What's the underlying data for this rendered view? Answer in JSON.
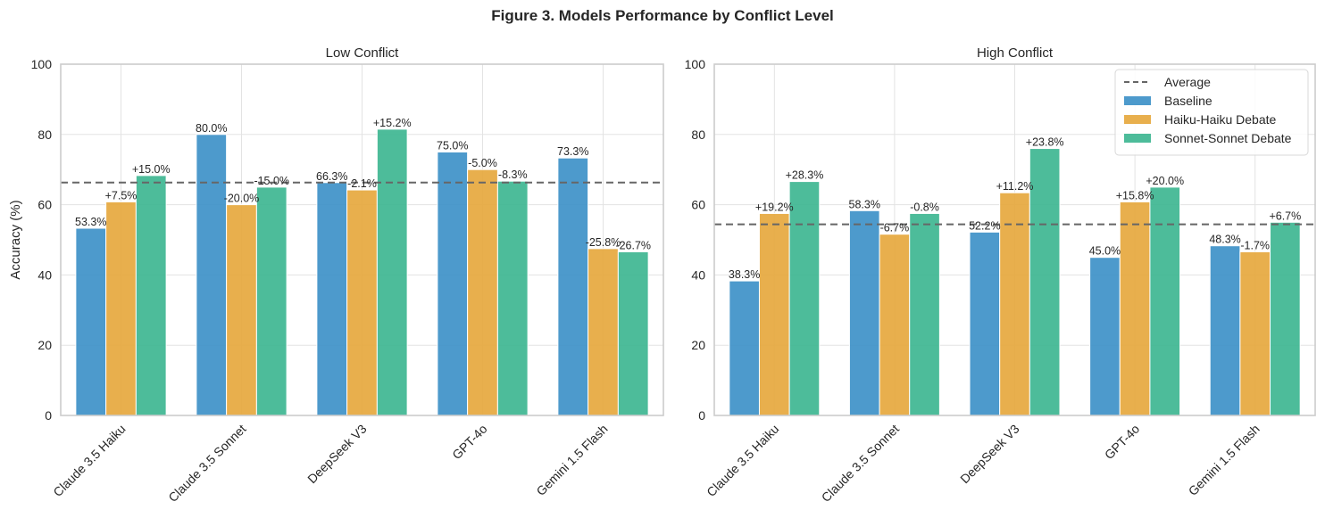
{
  "figure_title": "Figure 3. Models Performance by Conflict Level",
  "colors": {
    "Baseline": "#3a8fc7",
    "Haiku-Haiku Debate": "#e5a63a",
    "Sonnet-Sonnet Debate": "#3ab58f",
    "average": "#666666",
    "grid": "#e3e3e3",
    "spine": "#cccccc"
  },
  "chart_data": [
    {
      "type": "bar",
      "title": "Low Conflict",
      "xlabel": "",
      "ylabel": "Accuracy (%)",
      "ylim": [
        0,
        100
      ],
      "yticks": [
        "0",
        "20",
        "40",
        "60",
        "80",
        "100"
      ],
      "grid": true,
      "categories": [
        "Claude 3.5 Haiku",
        "Claude 3.5 Sonnet",
        "DeepSeek V3",
        "GPT-4o",
        "Gemini 1.5 Flash"
      ],
      "series": [
        {
          "name": "Baseline",
          "values": [
            53.3,
            80.0,
            66.3,
            75.0,
            73.3
          ],
          "labels": [
            "53.3%",
            "80.0%",
            "66.3%",
            "75.0%",
            "73.3%"
          ]
        },
        {
          "name": "Haiku-Haiku Debate",
          "values": [
            60.8,
            60.0,
            64.2,
            70.0,
            47.5
          ],
          "labels": [
            "+7.5%",
            "-20.0%",
            "-2.1%",
            "-5.0%",
            "-25.8%"
          ]
        },
        {
          "name": "Sonnet-Sonnet Debate",
          "values": [
            68.3,
            65.0,
            81.5,
            66.7,
            46.6
          ],
          "labels": [
            "+15.0%",
            "-15.0%",
            "+15.2%",
            "-8.3%",
            "-26.7%"
          ]
        }
      ],
      "average": 66.3,
      "legend": null
    },
    {
      "type": "bar",
      "title": "High Conflict",
      "xlabel": "",
      "ylabel": "",
      "ylim": [
        0,
        100
      ],
      "yticks": [
        "0",
        "20",
        "40",
        "60",
        "80",
        "100"
      ],
      "grid": true,
      "categories": [
        "Claude 3.5 Haiku",
        "Claude 3.5 Sonnet",
        "DeepSeek V3",
        "GPT-4o",
        "Gemini 1.5 Flash"
      ],
      "series": [
        {
          "name": "Baseline",
          "values": [
            38.3,
            58.3,
            52.2,
            45.0,
            48.3
          ],
          "labels": [
            "38.3%",
            "58.3%",
            "52.2%",
            "45.0%",
            "48.3%"
          ]
        },
        {
          "name": "Haiku-Haiku Debate",
          "values": [
            57.5,
            51.6,
            63.4,
            60.8,
            46.6
          ],
          "labels": [
            "+19.2%",
            "-6.7%",
            "+11.2%",
            "+15.8%",
            "-1.7%"
          ]
        },
        {
          "name": "Sonnet-Sonnet Debate",
          "values": [
            66.6,
            57.5,
            76.0,
            65.0,
            55.0
          ],
          "labels": [
            "+28.3%",
            "-0.8%",
            "+23.8%",
            "+20.0%",
            "+6.7%"
          ]
        }
      ],
      "average": 54.4,
      "legend": {
        "position": "top-right",
        "entries": [
          "Average",
          "Baseline",
          "Haiku-Haiku Debate",
          "Sonnet-Sonnet Debate"
        ]
      }
    }
  ]
}
